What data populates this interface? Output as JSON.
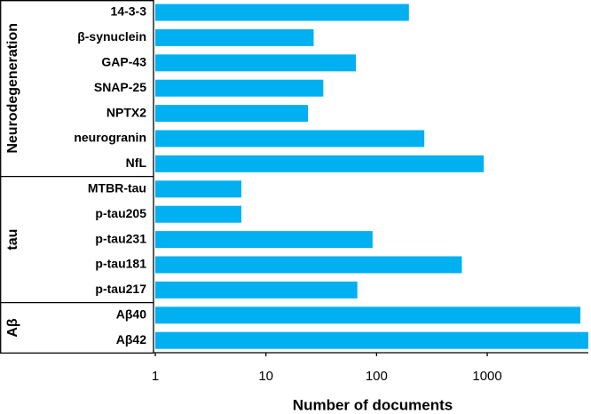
{
  "chart_data": {
    "type": "bar",
    "orientation": "horizontal",
    "color": "#00b0f0",
    "x_label": "Number of documents",
    "log_x": true,
    "xlim": [
      1,
      8200
    ],
    "xticks": [
      1,
      10,
      100,
      1000
    ],
    "groups": [
      {
        "label": "Neurodegeneration",
        "categories": [
          "14-3-3",
          "β-synuclein",
          "GAP-43",
          "SNAP-25",
          "NPTX2",
          "neurogranin",
          "NfL"
        ],
        "values": [
          196,
          27,
          65,
          33,
          24,
          270,
          930
        ]
      },
      {
        "label": "tau",
        "categories": [
          "MTBR-tau",
          "p-tau205",
          "p-tau231",
          "p-tau181",
          "p-tau217"
        ],
        "values": [
          6,
          6,
          92,
          590,
          67
        ]
      },
      {
        "label": "Aβ",
        "categories": [
          "Aβ40",
          "Aβ42"
        ],
        "values": [
          6950,
          8200
        ]
      }
    ]
  }
}
